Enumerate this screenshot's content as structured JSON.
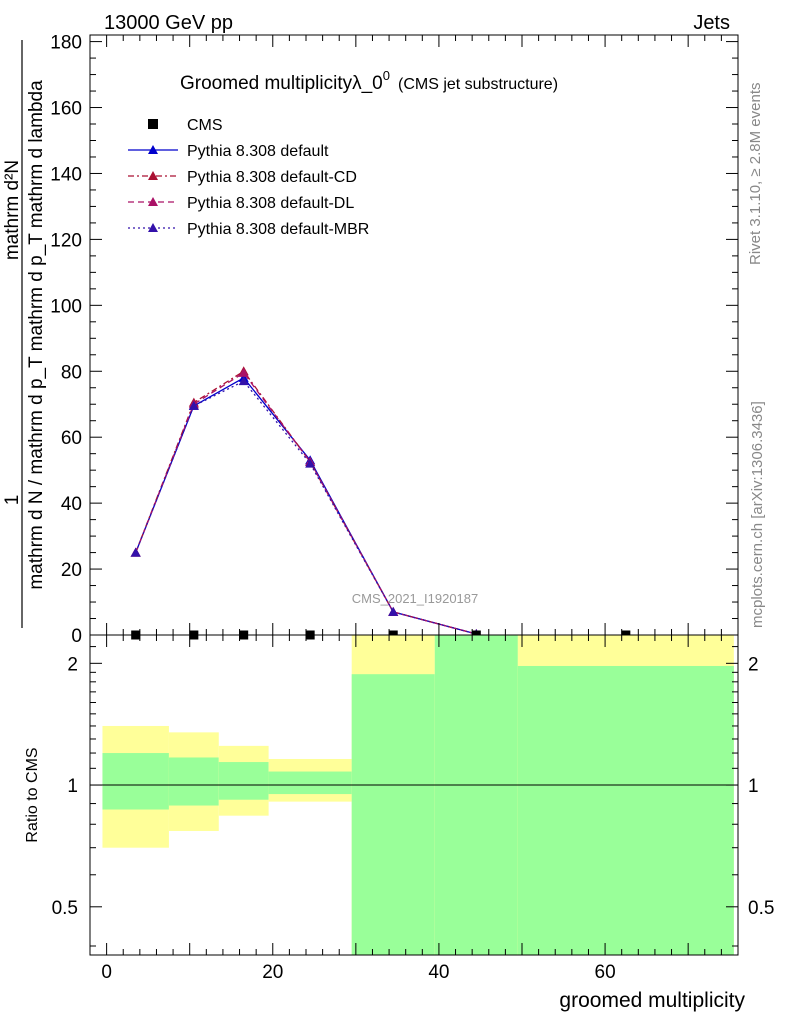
{
  "header": {
    "left": "13000 GeV pp",
    "right": "Jets"
  },
  "side_labels": {
    "rivet": "Rivet 3.1.10, ≥ 2.8M events",
    "mcplots": "mcplots.cern.ch [arXiv:1306.3436]"
  },
  "chart_data": [
    {
      "type": "line",
      "title": "Groomed multiplicityλ_0",
      "title_sup": "0",
      "subtitle": "(CMS jet substructure)",
      "watermark": "CMS_2021_I1920187",
      "ylabel_numerator": "1",
      "ylabel_denominator": "mathrm d N / mathrm d p_T mathrm d p_T mathrm d lambda",
      "ylabel_top": "mathrm d²N",
      "xlabel": "groomed multiplicity",
      "xlim": [
        -2,
        76
      ],
      "ylim": [
        0,
        182
      ],
      "yticks": [
        0,
        20,
        40,
        60,
        80,
        100,
        120,
        140,
        160,
        180
      ],
      "legend_position": "top-left",
      "data_points": {
        "name": "CMS",
        "color": "#000000",
        "x": [
          3.5,
          10.5,
          16.5,
          24.5,
          34.5,
          44.5,
          62.5
        ],
        "y": [
          0,
          0,
          0,
          0,
          0,
          0,
          0
        ]
      },
      "x": [
        3.5,
        10.5,
        16.5,
        24.5,
        34.5,
        44.5
      ],
      "series": [
        {
          "name": "Pythia 8.308 default",
          "color": "#0000cc",
          "dash": "solid",
          "values": [
            25,
            69.5,
            78,
            53,
            7,
            0.3
          ]
        },
        {
          "name": "Pythia 8.308 default-CD",
          "color": "#aa1133",
          "dash": "dashdot",
          "values": [
            25,
            70.5,
            80,
            52.5,
            7,
            0.3
          ]
        },
        {
          "name": "Pythia 8.308 default-DL",
          "color": "#aa1166",
          "dash": "dash",
          "values": [
            25,
            70,
            79.5,
            52.5,
            7,
            0.3
          ]
        },
        {
          "name": "Pythia 8.308 default-MBR",
          "color": "#3311aa",
          "dash": "dot",
          "values": [
            25,
            69.5,
            77,
            52,
            7,
            0.3
          ]
        }
      ]
    },
    {
      "type": "area",
      "ylabel": "Ratio to CMS",
      "xlabel": "groomed multiplicity",
      "xlim": [
        -2,
        76
      ],
      "ylim": [
        0.38,
        2.35
      ],
      "yticks": [
        0.5,
        1,
        2
      ],
      "xticks": [
        0,
        20,
        40,
        60
      ],
      "reference_line": 1,
      "bins": [
        {
          "lo": -0.5,
          "hi": 7.5,
          "yellow": [
            0.7,
            1.4
          ],
          "green": [
            0.87,
            1.2
          ]
        },
        {
          "lo": 7.5,
          "hi": 13.5,
          "yellow": [
            0.77,
            1.35
          ],
          "green": [
            0.89,
            1.17
          ]
        },
        {
          "lo": 13.5,
          "hi": 19.5,
          "yellow": [
            0.84,
            1.25
          ],
          "green": [
            0.92,
            1.14
          ]
        },
        {
          "lo": 19.5,
          "hi": 29.5,
          "yellow": [
            0.91,
            1.16
          ],
          "green": [
            0.95,
            1.08
          ]
        },
        {
          "lo": 29.5,
          "hi": 39.5,
          "yellow": [
            0.38,
            2.35
          ],
          "green": [
            0.38,
            1.88
          ]
        },
        {
          "lo": 39.5,
          "hi": 49.5,
          "yellow": [
            0.38,
            2.35
          ],
          "green": [
            0.38,
            2.35
          ]
        },
        {
          "lo": 49.5,
          "hi": 75.5,
          "yellow": [
            0.38,
            2.35
          ],
          "green": [
            0.38,
            1.97
          ]
        }
      ],
      "colors": {
        "yellow": "#ffff99",
        "green": "#99ff99"
      }
    }
  ]
}
